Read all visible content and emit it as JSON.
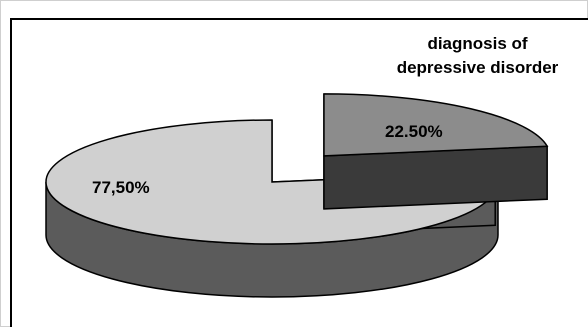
{
  "chart_data": {
    "type": "pie",
    "style": "3d-exploded",
    "slices": [
      {
        "label": "diagnosis of depressive disorder",
        "value": 22.5,
        "display": "22.50%",
        "color": "#8c8c8c",
        "side_color": "#3a3a3a",
        "exploded": true
      },
      {
        "value": 77.5,
        "display": "77,50%",
        "color": "#d0d0d0",
        "side_color": "#5b5b5b",
        "exploded": false
      }
    ],
    "annotation": {
      "line1": "diagnosis of",
      "line2": "depressive disorder"
    },
    "colors": {
      "outline": "#000000",
      "background": "#ffffff"
    }
  }
}
